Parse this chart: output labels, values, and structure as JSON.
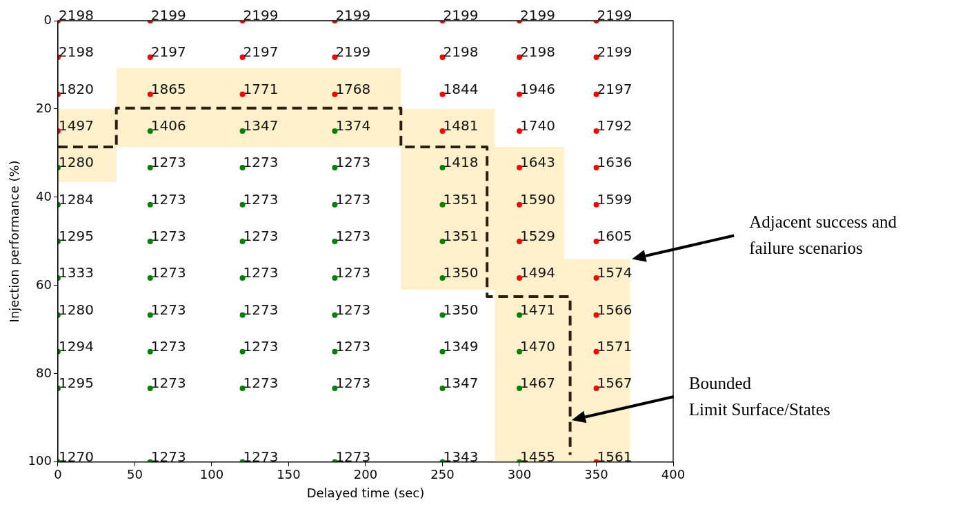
{
  "chart_data": {
    "type": "scatter",
    "xlabel": "Delayed time (sec)",
    "ylabel": "Injection performance (%)",
    "xlim": [
      0,
      400
    ],
    "xticks": [
      0,
      50,
      100,
      150,
      200,
      250,
      300,
      350,
      400
    ],
    "ylim": [
      100,
      0
    ],
    "yticks": [
      0,
      20,
      40,
      60,
      80,
      100
    ],
    "grid": false,
    "legend": false,
    "marker": "circle",
    "series": [
      {
        "type": "area",
        "color": "#fff0cc",
        "marker": "none",
        "x": [
          0,
          38,
          38,
          223,
          223,
          284,
          284,
          329,
          329,
          372
        ],
        "values": [
          null,
          null,
          null,
          null,
          null,
          null,
          null,
          null,
          null,
          null
        ],
        "lower": [
          20,
          20,
          10.8,
          10.8,
          20,
          20,
          28.6,
          28.6,
          54,
          54
        ],
        "upper": [
          36.6,
          36.6,
          28.6,
          28.6,
          61,
          61,
          100,
          100,
          100,
          100
        ]
      },
      {
        "type": "line",
        "color": "#2b2010",
        "line_style": "dashed",
        "marker": "none",
        "x": [
          0,
          38,
          38,
          223,
          223,
          279,
          279,
          333,
          333
        ],
        "values": [
          28.6,
          28.6,
          19.8,
          19.8,
          28.6,
          28.6,
          62.5,
          62.5,
          98.4
        ]
      },
      {
        "color": "#008000",
        "x": [
          0,
          0,
          0,
          0,
          0,
          0,
          0,
          0,
          60,
          60,
          60,
          60,
          60,
          60,
          60,
          60,
          60,
          120,
          120,
          120,
          120,
          120,
          120,
          120,
          120,
          120,
          180,
          180,
          180,
          180,
          180,
          180,
          180,
          180,
          180,
          250,
          250,
          250,
          250,
          250,
          250,
          250,
          250,
          300,
          300,
          300,
          300
        ],
        "values": [
          33.3,
          41.7,
          50,
          58.3,
          66.7,
          75,
          83.3,
          100,
          25,
          33.3,
          41.7,
          50,
          58.3,
          66.7,
          75,
          83.3,
          100,
          25,
          33.3,
          41.7,
          50,
          58.3,
          66.7,
          75,
          83.3,
          100,
          25,
          33.3,
          41.7,
          50,
          58.3,
          66.7,
          75,
          83.3,
          100,
          33.3,
          41.7,
          50,
          58.3,
          66.7,
          75,
          83.3,
          100,
          66.7,
          75,
          83.3,
          100
        ]
      },
      {
        "color": "#ff0000",
        "x": [
          0,
          0,
          0,
          0,
          60,
          60,
          60,
          120,
          120,
          120,
          180,
          180,
          180,
          250,
          250,
          250,
          250,
          300,
          300,
          300,
          300,
          300,
          300,
          300,
          300,
          350,
          350,
          350,
          350,
          350,
          350,
          350,
          350,
          350,
          350,
          350,
          350
        ],
        "values": [
          0,
          8.3,
          16.7,
          25,
          0,
          8.3,
          16.7,
          0,
          8.3,
          16.7,
          0,
          8.3,
          16.7,
          0,
          8.3,
          16.7,
          25,
          0,
          8.3,
          16.7,
          25,
          33.3,
          41.7,
          50,
          58.3,
          0,
          8.3,
          16.7,
          25,
          33.3,
          41.7,
          50,
          58.3,
          66.7,
          75,
          83.3,
          100
        ]
      }
    ],
    "annotations": [
      "Adjacent success and\nfailure scenarios",
      "Bounded\nLimit Surface/States",
      {
        "text": "1280",
        "x": 0,
        "y": 33.3
      },
      {
        "text": "1284",
        "x": 0,
        "y": 41.7
      },
      {
        "text": "1295",
        "x": 0,
        "y": 50
      },
      {
        "text": "1333",
        "x": 0,
        "y": 58.3
      },
      {
        "text": "1280",
        "x": 0,
        "y": 66.7
      },
      {
        "text": "1294",
        "x": 0,
        "y": 75
      },
      {
        "text": "1295",
        "x": 0,
        "y": 83.3
      },
      {
        "text": "1270",
        "x": 0,
        "y": 100
      },
      {
        "text": "1406",
        "x": 60,
        "y": 25
      },
      {
        "text": "1273",
        "x": 60,
        "y": 33.3
      },
      {
        "text": "1273",
        "x": 60,
        "y": 41.7
      },
      {
        "text": "1273",
        "x": 60,
        "y": 50
      },
      {
        "text": "1273",
        "x": 60,
        "y": 58.3
      },
      {
        "text": "1273",
        "x": 60,
        "y": 66.7
      },
      {
        "text": "1273",
        "x": 60,
        "y": 75
      },
      {
        "text": "1273",
        "x": 60,
        "y": 83.3
      },
      {
        "text": "1273",
        "x": 60,
        "y": 100
      },
      {
        "text": "1347",
        "x": 120,
        "y": 25
      },
      {
        "text": "1273",
        "x": 120,
        "y": 33.3
      },
      {
        "text": "1273",
        "x": 120,
        "y": 41.7
      },
      {
        "text": "1273",
        "x": 120,
        "y": 50
      },
      {
        "text": "1273",
        "x": 120,
        "y": 58.3
      },
      {
        "text": "1273",
        "x": 120,
        "y": 66.7
      },
      {
        "text": "1273",
        "x": 120,
        "y": 75
      },
      {
        "text": "1273",
        "x": 120,
        "y": 83.3
      },
      {
        "text": "1273",
        "x": 120,
        "y": 100
      },
      {
        "text": "1374",
        "x": 180,
        "y": 25
      },
      {
        "text": "1273",
        "x": 180,
        "y": 33.3
      },
      {
        "text": "1273",
        "x": 180,
        "y": 41.7
      },
      {
        "text": "1273",
        "x": 180,
        "y": 50
      },
      {
        "text": "1273",
        "x": 180,
        "y": 58.3
      },
      {
        "text": "1273",
        "x": 180,
        "y": 66.7
      },
      {
        "text": "1273",
        "x": 180,
        "y": 75
      },
      {
        "text": "1273",
        "x": 180,
        "y": 83.3
      },
      {
        "text": "1273",
        "x": 180,
        "y": 100
      },
      {
        "text": "1418",
        "x": 250,
        "y": 33.3
      },
      {
        "text": "1351",
        "x": 250,
        "y": 41.7
      },
      {
        "text": "1351",
        "x": 250,
        "y": 50
      },
      {
        "text": "1350",
        "x": 250,
        "y": 58.3
      },
      {
        "text": "1350",
        "x": 250,
        "y": 66.7
      },
      {
        "text": "1349",
        "x": 250,
        "y": 75
      },
      {
        "text": "1347",
        "x": 250,
        "y": 83.3
      },
      {
        "text": "1343",
        "x": 250,
        "y": 100
      },
      {
        "text": "1471",
        "x": 300,
        "y": 66.7
      },
      {
        "text": "1470",
        "x": 300,
        "y": 75
      },
      {
        "text": "1467",
        "x": 300,
        "y": 83.3
      },
      {
        "text": "1455",
        "x": 300,
        "y": 100
      },
      {
        "text": "2198",
        "x": 0,
        "y": 0
      },
      {
        "text": "2198",
        "x": 0,
        "y": 8.3
      },
      {
        "text": "1820",
        "x": 0,
        "y": 16.7
      },
      {
        "text": "1497",
        "x": 0,
        "y": 25
      },
      {
        "text": "2199",
        "x": 60,
        "y": 0
      },
      {
        "text": "2197",
        "x": 60,
        "y": 8.3
      },
      {
        "text": "1865",
        "x": 60,
        "y": 16.7
      },
      {
        "text": "2199",
        "x": 120,
        "y": 0
      },
      {
        "text": "2197",
        "x": 120,
        "y": 8.3
      },
      {
        "text": "1771",
        "x": 120,
        "y": 16.7
      },
      {
        "text": "2199",
        "x": 180,
        "y": 0
      },
      {
        "text": "2199",
        "x": 180,
        "y": 8.3
      },
      {
        "text": "1768",
        "x": 180,
        "y": 16.7
      },
      {
        "text": "2199",
        "x": 250,
        "y": 0
      },
      {
        "text": "2198",
        "x": 250,
        "y": 8.3
      },
      {
        "text": "1844",
        "x": 250,
        "y": 16.7
      },
      {
        "text": "1481",
        "x": 250,
        "y": 25
      },
      {
        "text": "2199",
        "x": 300,
        "y": 0
      },
      {
        "text": "2198",
        "x": 300,
        "y": 8.3
      },
      {
        "text": "1946",
        "x": 300,
        "y": 16.7
      },
      {
        "text": "1740",
        "x": 300,
        "y": 25
      },
      {
        "text": "1643",
        "x": 300,
        "y": 33.3
      },
      {
        "text": "1590",
        "x": 300,
        "y": 41.7
      },
      {
        "text": "1529",
        "x": 300,
        "y": 50
      },
      {
        "text": "1494",
        "x": 300,
        "y": 58.3
      },
      {
        "text": "2199",
        "x": 350,
        "y": 0
      },
      {
        "text": "2199",
        "x": 350,
        "y": 8.3
      },
      {
        "text": "2197",
        "x": 350,
        "y": 16.7
      },
      {
        "text": "1792",
        "x": 350,
        "y": 25
      },
      {
        "text": "1636",
        "x": 350,
        "y": 33.3
      },
      {
        "text": "1599",
        "x": 350,
        "y": 41.7
      },
      {
        "text": "1605",
        "x": 350,
        "y": 50
      },
      {
        "text": "1574",
        "x": 350,
        "y": 58.3
      },
      {
        "text": "1566",
        "x": 350,
        "y": 66.7
      },
      {
        "text": "1571",
        "x": 350,
        "y": 75
      },
      {
        "text": "1567",
        "x": 350,
        "y": 83.3
      },
      {
        "text": "1561",
        "x": 350,
        "y": 100
      }
    ]
  }
}
